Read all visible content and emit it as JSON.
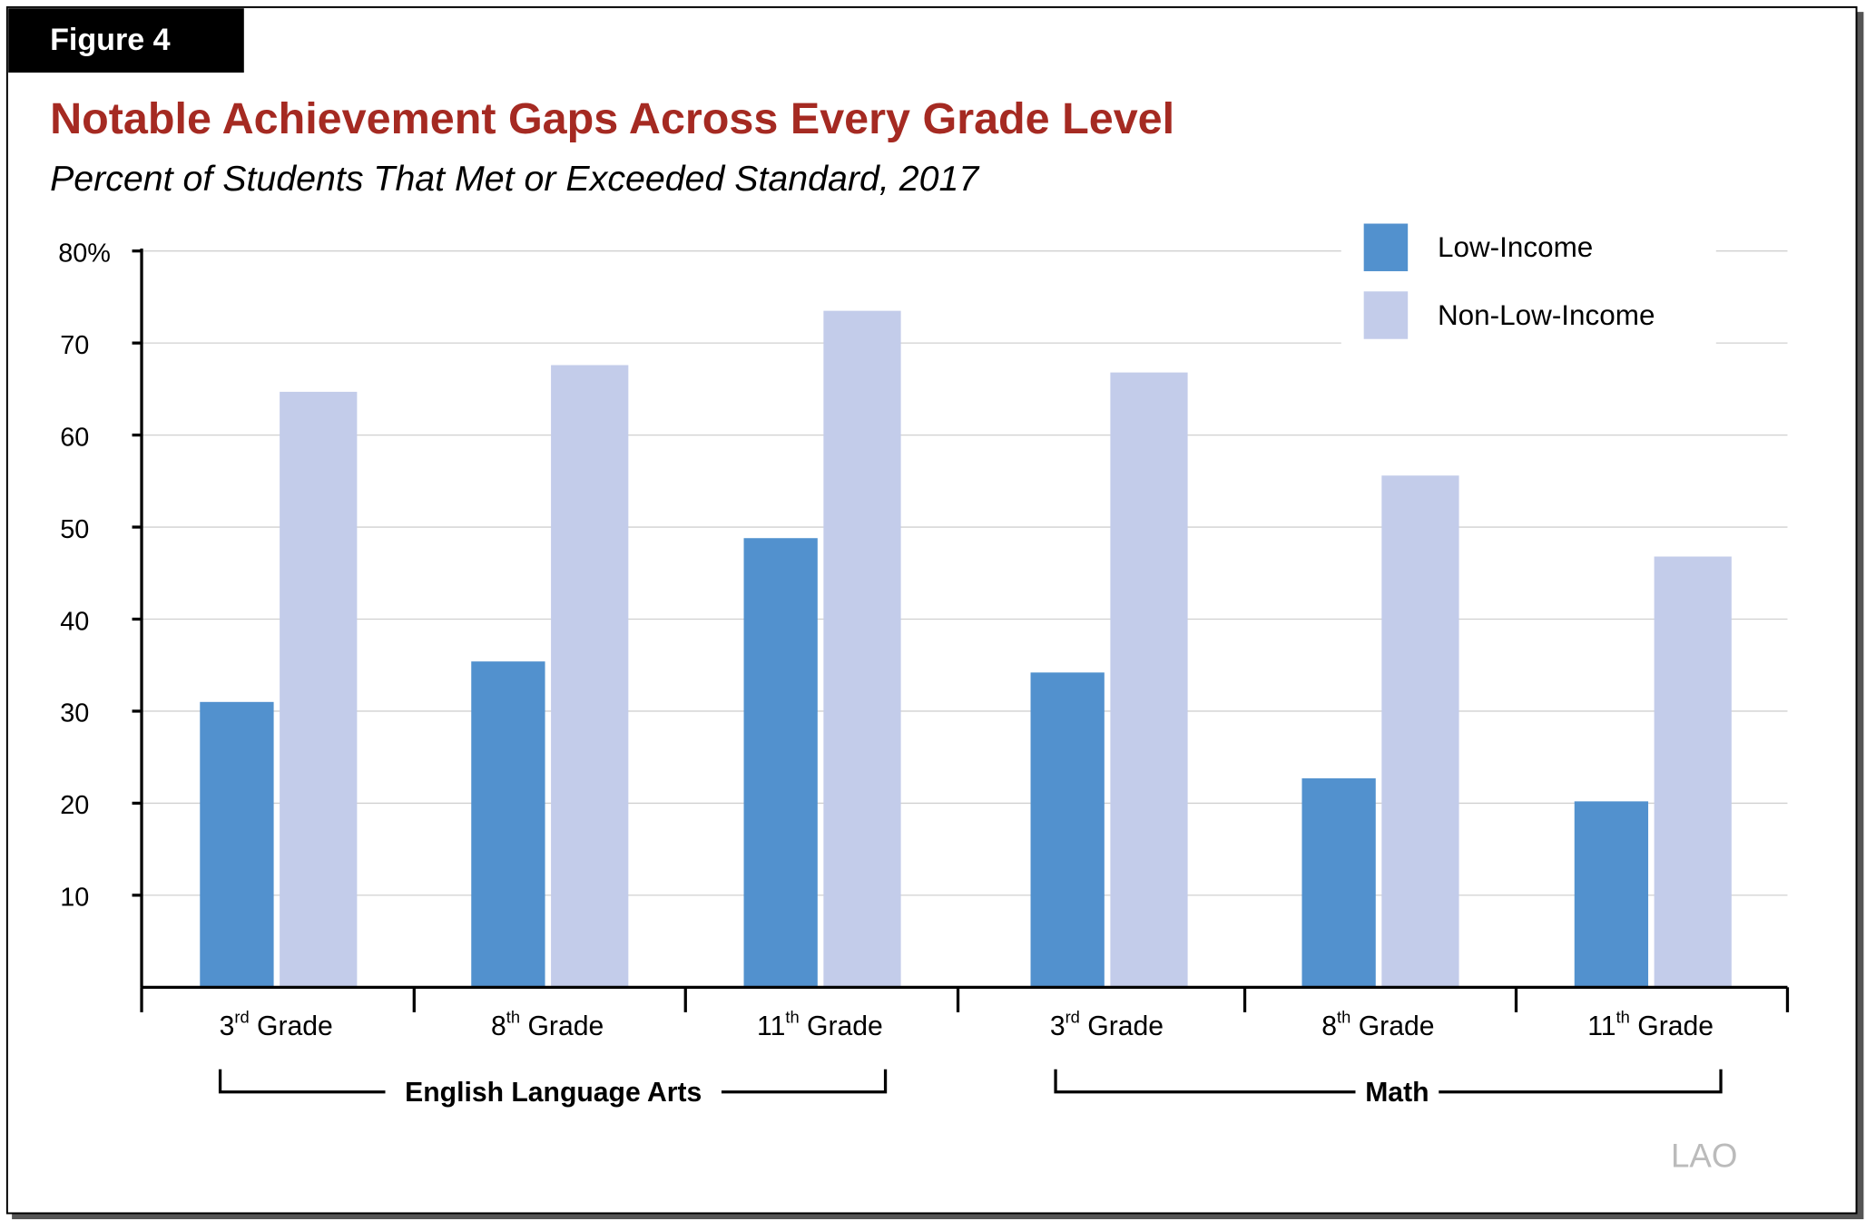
{
  "figure_label": "Figure 4",
  "watermark": "LAO",
  "chart_data": {
    "type": "bar",
    "title": "Notable Achievement Gaps Across Every Grade Level",
    "subtitle": "Percent of Students That Met or Exceeded Standard, 2017",
    "ylim": [
      0,
      80
    ],
    "yticks": [
      {
        "value": 10,
        "label": "10"
      },
      {
        "value": 20,
        "label": "20"
      },
      {
        "value": 30,
        "label": "30"
      },
      {
        "value": 40,
        "label": "40"
      },
      {
        "value": 50,
        "label": "50"
      },
      {
        "value": 60,
        "label": "60"
      },
      {
        "value": 70,
        "label": "70"
      },
      {
        "value": 80,
        "label": "80%"
      }
    ],
    "grid": true,
    "legend_position": "top-right",
    "categories": [
      {
        "num": "3",
        "sup": "rd",
        "rest": " Grade",
        "group": "English Language Arts"
      },
      {
        "num": "8",
        "sup": "th",
        "rest": " Grade",
        "group": "English Language Arts"
      },
      {
        "num": "11",
        "sup": "th",
        "rest": " Grade",
        "group": "English Language Arts"
      },
      {
        "num": "3",
        "sup": "rd",
        "rest": " Grade",
        "group": "Math"
      },
      {
        "num": "8",
        "sup": "th",
        "rest": " Grade",
        "group": "Math"
      },
      {
        "num": "11",
        "sup": "th",
        "rest": " Grade",
        "group": "Math"
      }
    ],
    "groups": [
      "English Language Arts",
      "Math"
    ],
    "series": [
      {
        "name": "Low-Income",
        "color": "#5291CE",
        "values": [
          31,
          35.4,
          48.8,
          34.2,
          22.7,
          20.2
        ]
      },
      {
        "name": "Non-Low-Income",
        "color": "#C3CCEA",
        "values": [
          64.7,
          67.6,
          73.5,
          66.8,
          55.6,
          46.8
        ]
      }
    ],
    "colors": {
      "title": "#A52A22",
      "axis": "#000000",
      "grid": "#D0D0D0"
    }
  }
}
